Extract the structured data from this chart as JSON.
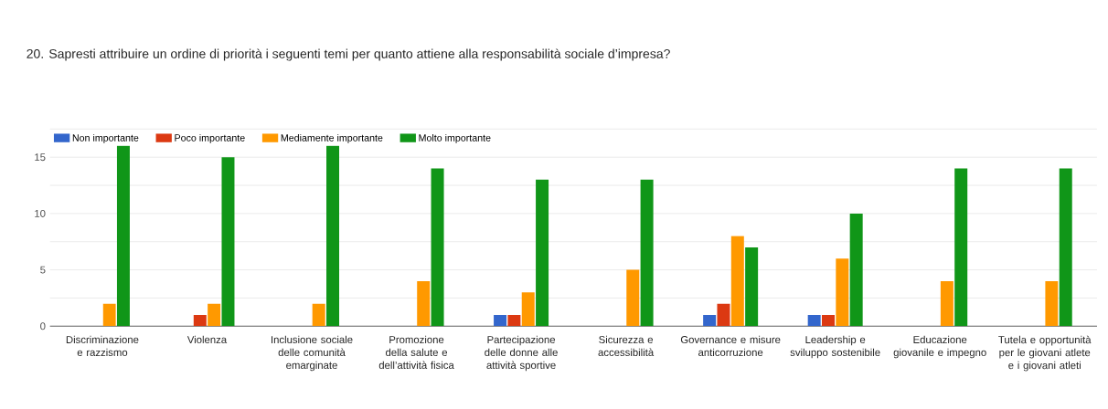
{
  "chart_data": {
    "type": "bar",
    "title": "20. Sapresti attribuire un ordine di priorità i seguenti temi per quanto attiene alla responsabilità sociale d’impresa?",
    "categories": [
      "Discriminazione e razzismo",
      "Violenza",
      "Inclusione sociale delle comunità emarginate",
      "Promozione della salute e dell’attività fisica",
      "Partecipazione delle donne alle attività sportive",
      "Sicurezza e accessibilità",
      "Governance e misure anticorruzione",
      "Leadership e sviluppo sostenibile",
      "Educazione giovanile e impegno",
      "Tutela e opportunità per le giovani atlete e i giovani atleti"
    ],
    "series": [
      {
        "name": "Non importante",
        "color": "#3366cc",
        "values": [
          0,
          0,
          0,
          0,
          1,
          0,
          1,
          1,
          0,
          0
        ]
      },
      {
        "name": "Poco importante",
        "color": "#dc3912",
        "values": [
          0,
          1,
          0,
          0,
          1,
          0,
          2,
          1,
          0,
          0
        ]
      },
      {
        "name": "Mediamente importante",
        "color": "#ff9900",
        "values": [
          2,
          2,
          2,
          4,
          3,
          5,
          8,
          6,
          4,
          4
        ]
      },
      {
        "name": "Molto importante",
        "color": "#109618",
        "values": [
          16,
          15,
          16,
          14,
          13,
          13,
          7,
          10,
          14,
          14
        ]
      }
    ],
    "ylim": [
      0,
      17.5
    ],
    "yticks": [
      0,
      {
        "value": 2.5,
        "label": null
      },
      5,
      {
        "value": 7.5,
        "label": null
      },
      10,
      {
        "value": 12.5,
        "label": null
      },
      15,
      {
        "value": 17.5,
        "label": null
      }
    ],
    "grid": "y",
    "legend": "top left"
  }
}
